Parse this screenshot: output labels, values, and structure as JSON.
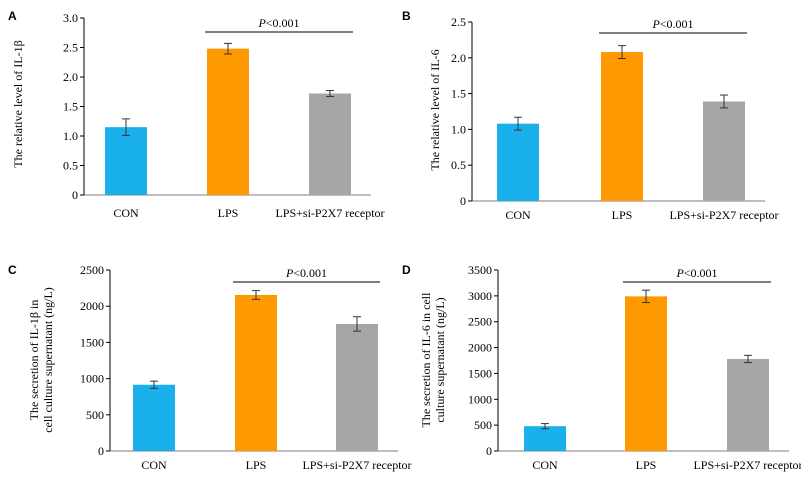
{
  "colors": {
    "con": "#1ab0ec",
    "lps": "#ff9900",
    "si": "#a6a6a6",
    "error_bar": "#333333"
  },
  "chart_data": [
    {
      "type": "bar",
      "panel": "A",
      "categories": [
        "CON",
        "LPS",
        "LPS+si-P2X7 receptor"
      ],
      "values": [
        1.15,
        2.48,
        1.72
      ],
      "errors": [
        0.14,
        0.09,
        0.05
      ],
      "ylabel": "The relative level of IL-1β",
      "ylim": [
        0,
        3.0
      ],
      "yticks": [
        "0",
        "0.5",
        "1.0",
        "1.5",
        "2.0",
        "2.5",
        "3.0"
      ],
      "annotation": "P<0.001",
      "grid": false
    },
    {
      "type": "bar",
      "panel": "B",
      "categories": [
        "CON",
        "LPS",
        "LPS+si-P2X7 receptor"
      ],
      "values": [
        1.08,
        2.08,
        1.39
      ],
      "errors": [
        0.09,
        0.09,
        0.09
      ],
      "ylabel": "The relative level of IL-6",
      "ylim": [
        0,
        2.5
      ],
      "yticks": [
        "0",
        "0.5",
        "1.0",
        "1.5",
        "2.0",
        "2.5"
      ],
      "annotation": "P<0.001",
      "grid": false
    },
    {
      "type": "bar",
      "panel": "C",
      "categories": [
        "CON",
        "LPS",
        "LPS+si-P2X7 receptor"
      ],
      "values": [
        915,
        2155,
        1755
      ],
      "errors": [
        50,
        60,
        100
      ],
      "ylabel": [
        "The secretion of IL-1β in",
        "cell culture supernatant (ng/L)"
      ],
      "ylim": [
        0,
        2500
      ],
      "yticks": [
        "0",
        "500",
        "1000",
        "1500",
        "2000",
        "2500"
      ],
      "annotation": "P<0.001",
      "grid": false
    },
    {
      "type": "bar",
      "panel": "D",
      "categories": [
        "CON",
        "LPS",
        "LPS+si-P2X7 receptor"
      ],
      "values": [
        480,
        2990,
        1780
      ],
      "errors": [
        50,
        120,
        70
      ],
      "ylabel": [
        "The secretion of IL-6 in cell",
        "culture supernatant (ng/L)"
      ],
      "ylim": [
        0,
        3500
      ],
      "yticks": [
        "0",
        "500",
        "1000",
        "1500",
        "2000",
        "2500",
        "3000",
        "3500"
      ],
      "annotation": "P<0.001",
      "grid": false
    }
  ]
}
